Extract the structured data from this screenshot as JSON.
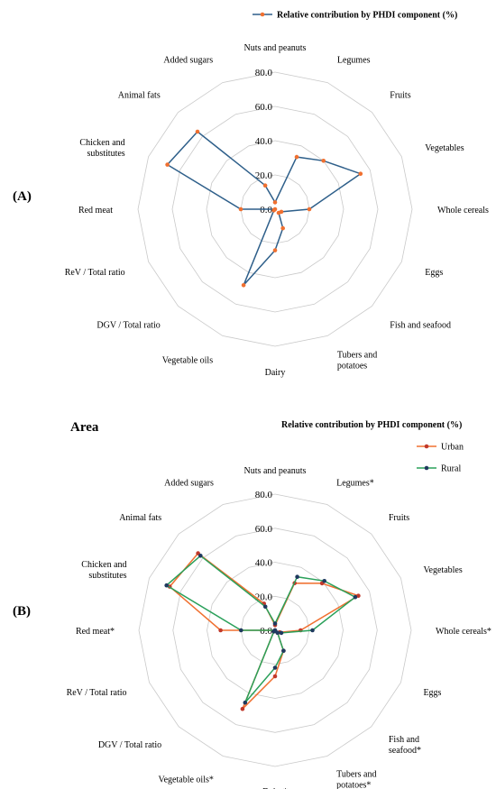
{
  "chart_data": [
    {
      "type": "radar",
      "panel_label": "(A)",
      "legend_title": "",
      "categories": [
        "Nuts and peanuts",
        "Legumes",
        "Fruits",
        "Vegetables",
        "Whole cereals",
        "Eggs",
        "Fish and seafood",
        "Tubers and potatoes",
        "Dairy",
        "Vegetable oils",
        "DGV / Total ratio",
        "ReV / Total ratio",
        "Red meat",
        "Chicken and substitutes",
        "Animal fats",
        "Added sugars"
      ],
      "category_lines": [
        [
          "Nuts and peanuts"
        ],
        [
          "Legumes"
        ],
        [
          "Fruits"
        ],
        [
          "Vegetables"
        ],
        [
          "Whole cereals"
        ],
        [
          "Eggs"
        ],
        [
          "Fish and seafood"
        ],
        [
          "Tubers and",
          "potatoes"
        ],
        [
          "Dairy"
        ],
        [
          "Vegetable oils"
        ],
        [
          "DGV / Total ratio"
        ],
        [
          "ReV / Total ratio"
        ],
        [
          "Red meat"
        ],
        [
          "Chicken and",
          "substitutes"
        ],
        [
          "Animal fats"
        ],
        [
          "Added sugars"
        ]
      ],
      "ticks": [
        "0.0",
        "20.0",
        "40.0",
        "60.0",
        "80.0"
      ],
      "rlim": [
        0,
        80
      ],
      "grid": true,
      "series": [
        {
          "name": "Relative contribution by PHDI component (%)",
          "line_color": "#2e5f8a",
          "marker_color": "#f07030",
          "values": [
            4,
            33,
            40,
            54,
            20,
            4,
            3,
            12,
            24,
            48,
            1,
            0,
            20,
            68,
            64,
            15
          ]
        }
      ]
    },
    {
      "type": "radar",
      "panel_label": "(B)",
      "legend_title": "Relative contribution by PHDI component (%)",
      "title": "Area",
      "categories": [
        "Nuts and peanuts",
        "Legumes*",
        "Fruits",
        "Vegetables",
        "Whole cereals*",
        "Eggs",
        "Fish and seafood*",
        "Tubers and potatoes*",
        "Dairy*",
        "Vegetable oils*",
        "DGV / Total ratio",
        "ReV / Total ratio",
        "Red meat*",
        "Chicken and substitutes",
        "Animal fats",
        "Added sugars"
      ],
      "category_lines": [
        [
          "Nuts and peanuts"
        ],
        [
          "Legumes*"
        ],
        [
          "Fruits"
        ],
        [
          "Vegetables"
        ],
        [
          "Whole cereals*"
        ],
        [
          "Eggs"
        ],
        [
          "Fish and",
          "seafood*"
        ],
        [
          "Tubers and",
          "potatoes*"
        ],
        [
          "Dairy*"
        ],
        [
          "Vegetable oils*"
        ],
        [
          "DGV / Total ratio"
        ],
        [
          "ReV / Total ratio"
        ],
        [
          "Red meat*"
        ],
        [
          "Chicken and",
          "substitutes"
        ],
        [
          "Animal fats"
        ],
        [
          "Added sugars"
        ]
      ],
      "ticks": [
        "0.0",
        "20.0",
        "40.0",
        "60.0",
        "80.0"
      ],
      "rlim": [
        0,
        80
      ],
      "grid": true,
      "series": [
        {
          "name": "Urban",
          "line_color": "#f07030",
          "marker_color": "#c0392b",
          "values": [
            3,
            30,
            39,
            53,
            15,
            3,
            2,
            13,
            27,
            50,
            1,
            0,
            32,
            67,
            64,
            17
          ]
        },
        {
          "name": "Rural",
          "line_color": "#2aa05a",
          "marker_color": "#1f3a5f",
          "values": [
            4,
            34,
            41,
            51,
            22,
            4,
            2,
            13,
            22,
            46,
            1,
            0,
            20,
            69,
            62,
            15
          ]
        }
      ]
    }
  ]
}
